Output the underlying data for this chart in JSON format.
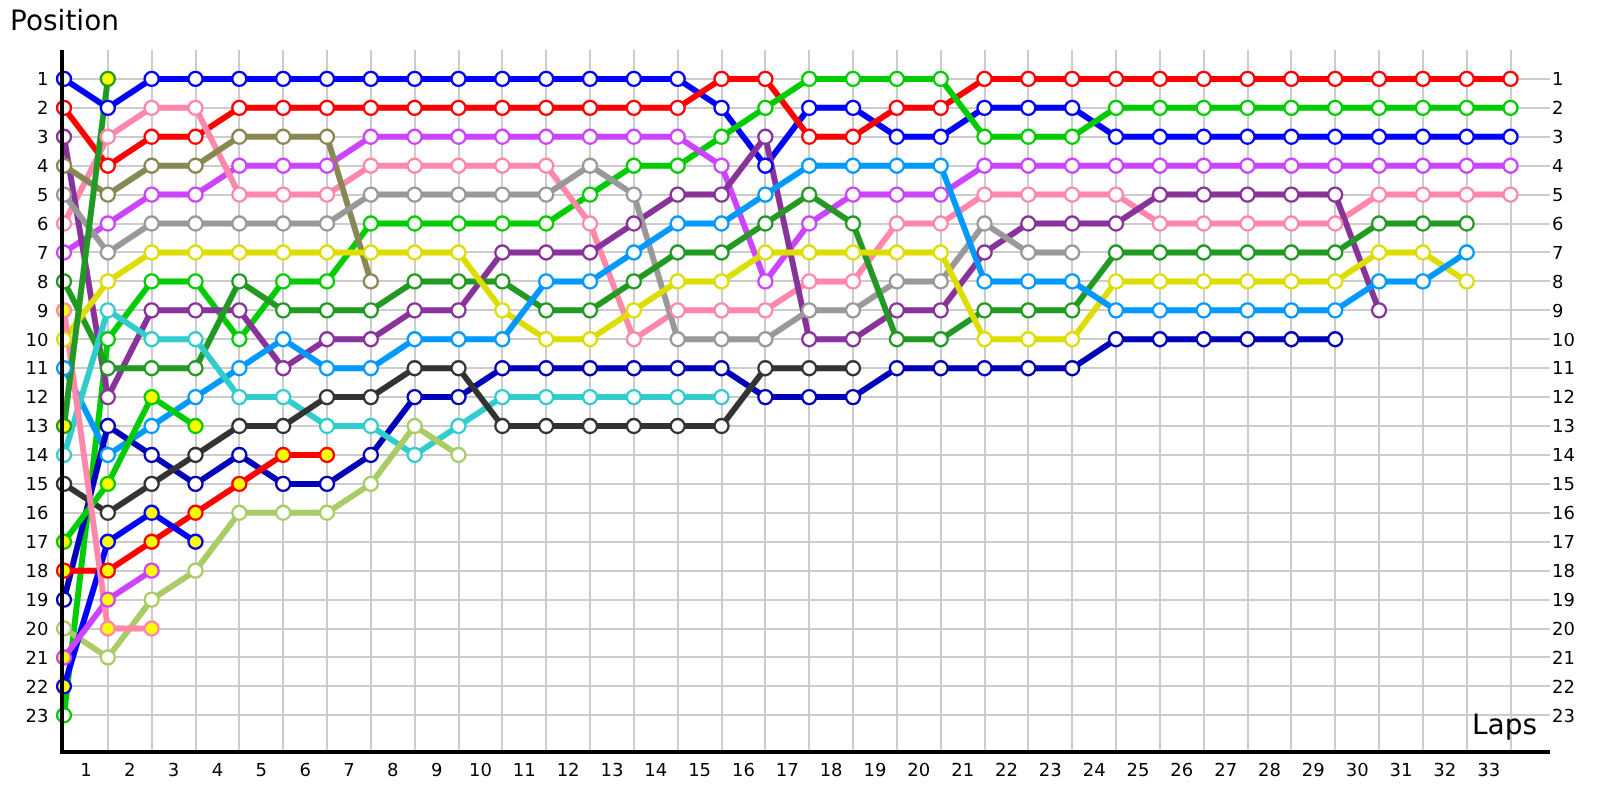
{
  "chart_data": {
    "type": "line",
    "xlabel": "Laps",
    "ylabel": "Position",
    "marker": "circle",
    "line_style": "solid",
    "grid": true,
    "x": [
      0,
      1,
      2,
      3,
      4,
      5,
      6,
      7,
      8,
      9,
      10,
      11,
      12,
      13,
      14,
      15,
      16,
      17,
      18,
      19,
      20,
      21,
      22,
      23,
      24,
      25,
      26,
      27,
      28,
      29,
      30,
      31,
      32,
      33
    ],
    "xlim": [
      0,
      33.9
    ],
    "xticks": [
      {
        "value": 0.5,
        "label": "1"
      },
      {
        "value": 1.5,
        "label": "2"
      },
      {
        "value": 2.5,
        "label": "3"
      },
      {
        "value": 3.5,
        "label": "4"
      },
      {
        "value": 4.5,
        "label": "5"
      },
      {
        "value": 5.5,
        "label": "6"
      },
      {
        "value": 6.5,
        "label": "7"
      },
      {
        "value": 7.5,
        "label": "8"
      },
      {
        "value": 8.5,
        "label": "9"
      },
      {
        "value": 9.5,
        "label": "10"
      },
      {
        "value": 10.5,
        "label": "11"
      },
      {
        "value": 11.5,
        "label": "12"
      },
      {
        "value": 12.5,
        "label": "13"
      },
      {
        "value": 13.5,
        "label": "14"
      },
      {
        "value": 14.5,
        "label": "15"
      },
      {
        "value": 15.5,
        "label": "16"
      },
      {
        "value": 16.5,
        "label": "17"
      },
      {
        "value": 17.5,
        "label": "18"
      },
      {
        "value": 18.5,
        "label": "19"
      },
      {
        "value": 19.5,
        "label": "20"
      },
      {
        "value": 20.5,
        "label": "21"
      },
      {
        "value": 21.5,
        "label": "22"
      },
      {
        "value": 22.5,
        "label": "23"
      },
      {
        "value": 23.5,
        "label": "24"
      },
      {
        "value": 24.5,
        "label": "25"
      },
      {
        "value": 25.5,
        "label": "26"
      },
      {
        "value": 26.5,
        "label": "27"
      },
      {
        "value": 27.5,
        "label": "28"
      },
      {
        "value": 28.5,
        "label": "29"
      },
      {
        "value": 29.5,
        "label": "30"
      },
      {
        "value": 30.5,
        "label": "31"
      },
      {
        "value": 31.5,
        "label": "32"
      },
      {
        "value": 32.5,
        "label": "33"
      }
    ],
    "ylim": [
      24.2,
      0
    ],
    "yticks": [
      1,
      2,
      3,
      4,
      5,
      6,
      7,
      8,
      9,
      10,
      11,
      12,
      13,
      14,
      15,
      16,
      17,
      18,
      19,
      20,
      21,
      22,
      23
    ],
    "y2lim": [
      24.2,
      0
    ],
    "y2ticks": [
      1,
      2,
      3,
      4,
      5,
      6,
      7,
      8,
      9,
      10,
      11,
      12,
      13,
      14,
      15,
      16,
      17,
      18,
      19,
      20,
      21,
      22,
      23
    ],
    "series": [
      {
        "color": "#0000ff",
        "values": [
          1,
          2,
          1,
          1,
          1,
          1,
          1,
          1,
          1,
          1,
          1,
          1,
          1,
          1,
          1,
          2,
          4,
          2,
          2,
          3,
          3,
          2,
          2,
          2,
          3,
          3,
          3,
          3,
          3,
          3,
          3,
          3,
          3,
          3
        ]
      },
      {
        "color": "#ff0000",
        "values": [
          2,
          4,
          3,
          3,
          2,
          2,
          2,
          2,
          2,
          2,
          2,
          2,
          2,
          2,
          2,
          1,
          1,
          3,
          3,
          2,
          2,
          1,
          1,
          1,
          1,
          1,
          1,
          1,
          1,
          1,
          1,
          1,
          1,
          1
        ]
      },
      {
        "color": "#00cc00",
        "values": [
          23,
          10,
          8,
          8,
          10,
          8,
          8,
          6,
          6,
          6,
          6,
          6,
          5,
          4,
          4,
          3,
          2,
          1,
          1,
          1,
          1,
          3,
          3,
          3,
          2,
          2,
          2,
          2,
          2,
          2,
          2,
          2,
          2,
          2
        ]
      },
      {
        "color": "#cc44ff",
        "values": [
          7,
          6,
          5,
          5,
          4,
          4,
          4,
          3,
          3,
          3,
          3,
          3,
          3,
          3,
          3,
          4,
          8,
          6,
          5,
          5,
          5,
          4,
          4,
          4,
          4,
          4,
          4,
          4,
          4,
          4,
          4,
          4,
          4,
          4
        ]
      },
      {
        "color": "#ff88aa",
        "values": [
          6,
          3,
          2,
          2,
          5,
          5,
          5,
          4,
          4,
          4,
          4,
          4,
          6,
          10,
          9,
          9,
          9,
          8,
          8,
          6,
          6,
          5,
          5,
          5,
          5,
          6,
          6,
          6,
          6,
          6,
          5,
          5,
          5,
          5
        ]
      },
      {
        "color": "#883399",
        "values": [
          3,
          12,
          9,
          9,
          9,
          11,
          10,
          10,
          9,
          9,
          7,
          7,
          7,
          6,
          5,
          5,
          3,
          10,
          10,
          9,
          9,
          7,
          6,
          6,
          6,
          5,
          5,
          5,
          5,
          5,
          9,
          null,
          null,
          null
        ]
      },
      {
        "color": "#888855",
        "values": [
          4,
          5,
          4,
          4,
          3,
          3,
          3,
          8,
          null,
          null,
          null,
          null,
          null,
          null,
          null,
          null,
          null,
          null,
          null,
          null,
          null,
          null,
          null,
          null,
          null,
          null,
          null,
          null,
          null,
          null,
          null,
          null,
          null,
          null
        ]
      },
      {
        "color": "#999999",
        "values": [
          5,
          7,
          6,
          6,
          6,
          6,
          6,
          5,
          5,
          5,
          5,
          5,
          4,
          5,
          10,
          10,
          10,
          9,
          9,
          8,
          8,
          6,
          7,
          7,
          null,
          null,
          null,
          null,
          null,
          null,
          null,
          null,
          null,
          null
        ]
      },
      {
        "color": "#229922",
        "values": [
          8,
          11,
          11,
          11,
          8,
          9,
          9,
          9,
          8,
          8,
          8,
          9,
          9,
          8,
          7,
          7,
          6,
          5,
          6,
          10,
          10,
          9,
          9,
          9,
          7,
          7,
          7,
          7,
          7,
          7,
          6,
          6,
          6,
          null
        ]
      },
      {
        "color": "#dddd00",
        "values": [
          10,
          8,
          7,
          7,
          7,
          7,
          7,
          7,
          7,
          7,
          9,
          10,
          10,
          9,
          8,
          8,
          7,
          7,
          7,
          7,
          7,
          10,
          10,
          10,
          8,
          8,
          8,
          8,
          8,
          8,
          7,
          7,
          8,
          null
        ]
      },
      {
        "color": "#0099ff",
        "values": [
          11,
          14,
          13,
          12,
          11,
          10,
          11,
          11,
          10,
          10,
          10,
          8,
          8,
          7,
          6,
          6,
          5,
          4,
          4,
          4,
          4,
          8,
          8,
          8,
          9,
          9,
          9,
          9,
          9,
          9,
          8,
          8,
          7,
          null
        ]
      },
      {
        "color": "#0000bb",
        "values": [
          19,
          13,
          14,
          15,
          14,
          15,
          15,
          14,
          12,
          12,
          11,
          11,
          11,
          11,
          11,
          11,
          12,
          12,
          12,
          11,
          11,
          11,
          11,
          11,
          10,
          10,
          10,
          10,
          10,
          10,
          null,
          null,
          null,
          null
        ]
      },
      {
        "color": "#33cccc",
        "values": [
          14,
          9,
          10,
          10,
          12,
          12,
          13,
          13,
          14,
          13,
          12,
          12,
          12,
          12,
          12,
          12,
          null,
          null,
          null,
          null,
          null,
          null,
          null,
          null,
          null,
          null,
          null,
          null,
          null,
          null,
          null,
          null,
          null,
          null
        ]
      },
      {
        "color": "#333333",
        "values": [
          15,
          16,
          15,
          14,
          13,
          13,
          12,
          12,
          11,
          11,
          13,
          13,
          13,
          13,
          13,
          13,
          11,
          11,
          11,
          null,
          null,
          null,
          null,
          null,
          null,
          null,
          null,
          null,
          null,
          null,
          null,
          null,
          null,
          null
        ]
      },
      {
        "color": "#aacc66",
        "values": [
          20,
          21,
          19,
          18,
          16,
          16,
          16,
          15,
          13,
          14,
          null,
          null,
          null,
          null,
          null,
          null,
          null,
          null,
          null,
          null,
          null,
          null,
          null,
          null,
          null,
          null,
          null,
          null,
          null,
          null,
          null,
          null,
          null,
          null
        ]
      },
      {
        "color": "#ff0000",
        "colors": [
          "#ffff00",
          "#ffff00",
          "#ffff00",
          "#ffff00",
          "#ffff00",
          "#ffff00",
          "#ffff00",
          null,
          null,
          null,
          null,
          null,
          null,
          null,
          null,
          null,
          null,
          null,
          null,
          null,
          null,
          null,
          null,
          null,
          null,
          null,
          null,
          null,
          null,
          null,
          null,
          null,
          null,
          null
        ],
        "values": [
          18,
          18,
          17,
          16,
          15,
          14,
          14,
          null,
          null,
          null,
          null,
          null,
          null,
          null,
          null,
          null,
          null,
          null,
          null,
          null,
          null,
          null,
          null,
          null,
          null,
          null,
          null,
          null,
          null,
          null,
          null,
          null,
          null,
          null
        ]
      },
      {
        "color": "#00cc00",
        "colors": [
          "#ffff00",
          "#ffff00",
          "#ffff00",
          "#ffff00",
          null,
          null,
          null,
          null,
          null,
          null,
          null,
          null,
          null,
          null,
          null,
          null,
          null,
          null,
          null,
          null,
          null,
          null,
          null,
          null,
          null,
          null,
          null,
          null,
          null,
          null,
          null,
          null,
          null,
          null
        ],
        "values": [
          17,
          15,
          12,
          13,
          null,
          null,
          null,
          null,
          null,
          null,
          null,
          null,
          null,
          null,
          null,
          null,
          null,
          null,
          null,
          null,
          null,
          null,
          null,
          null,
          null,
          null,
          null,
          null,
          null,
          null,
          null,
          null,
          null,
          null
        ]
      },
      {
        "color": "#0000ff",
        "colors": [
          "#ffff00",
          "#ffff00",
          "#ffff00",
          "#ffff00",
          null,
          null,
          null,
          null,
          null,
          null,
          null,
          null,
          null,
          null,
          null,
          null,
          null,
          null,
          null,
          null,
          null,
          null,
          null,
          null,
          null,
          null,
          null,
          null,
          null,
          null,
          null,
          null,
          null,
          null
        ],
        "values": [
          22,
          17,
          16,
          17,
          null,
          null,
          null,
          null,
          null,
          null,
          null,
          null,
          null,
          null,
          null,
          null,
          null,
          null,
          null,
          null,
          null,
          null,
          null,
          null,
          null,
          null,
          null,
          null,
          null,
          null,
          null,
          null,
          null,
          null
        ]
      },
      {
        "color": "#cc44ff",
        "colors": [
          "#ffff00",
          "#ffff00",
          "#ffff00",
          null,
          null,
          null,
          null,
          null,
          null,
          null,
          null,
          null,
          null,
          null,
          null,
          null,
          null,
          null,
          null,
          null,
          null,
          null,
          null,
          null,
          null,
          null,
          null,
          null,
          null,
          null,
          null,
          null,
          null,
          null
        ],
        "values": [
          21,
          19,
          18,
          null,
          null,
          null,
          null,
          null,
          null,
          null,
          null,
          null,
          null,
          null,
          null,
          null,
          null,
          null,
          null,
          null,
          null,
          null,
          null,
          null,
          null,
          null,
          null,
          null,
          null,
          null,
          null,
          null,
          null,
          null
        ]
      },
      {
        "color": "#ff88aa",
        "colors": [
          "#ffff00",
          "#ffff00",
          "#ffff00",
          null,
          null,
          null,
          null,
          null,
          null,
          null,
          null,
          null,
          null,
          null,
          null,
          null,
          null,
          null,
          null,
          null,
          null,
          null,
          null,
          null,
          null,
          null,
          null,
          null,
          null,
          null,
          null,
          null,
          null,
          null
        ],
        "values": [
          9,
          20,
          20,
          null,
          null,
          null,
          null,
          null,
          null,
          null,
          null,
          null,
          null,
          null,
          null,
          null,
          null,
          null,
          null,
          null,
          null,
          null,
          null,
          null,
          null,
          null,
          null,
          null,
          null,
          null,
          null,
          null,
          null,
          null
        ]
      },
      {
        "color": "#229922",
        "colors": [
          "#ffff00",
          "#ffff00",
          null,
          null,
          null,
          null,
          null,
          null,
          null,
          null,
          null,
          null,
          null,
          null,
          null,
          null,
          null,
          null,
          null,
          null,
          null,
          null,
          null,
          null,
          null,
          null,
          null,
          null,
          null,
          null,
          null,
          null,
          null,
          null
        ],
        "values": [
          13,
          1,
          null,
          null,
          null,
          null,
          null,
          null,
          null,
          null,
          null,
          null,
          null,
          null,
          null,
          null,
          null,
          null,
          null,
          null,
          null,
          null,
          null,
          null,
          null,
          null,
          null,
          null,
          null,
          null,
          null,
          null,
          null,
          null
        ]
      }
    ]
  }
}
